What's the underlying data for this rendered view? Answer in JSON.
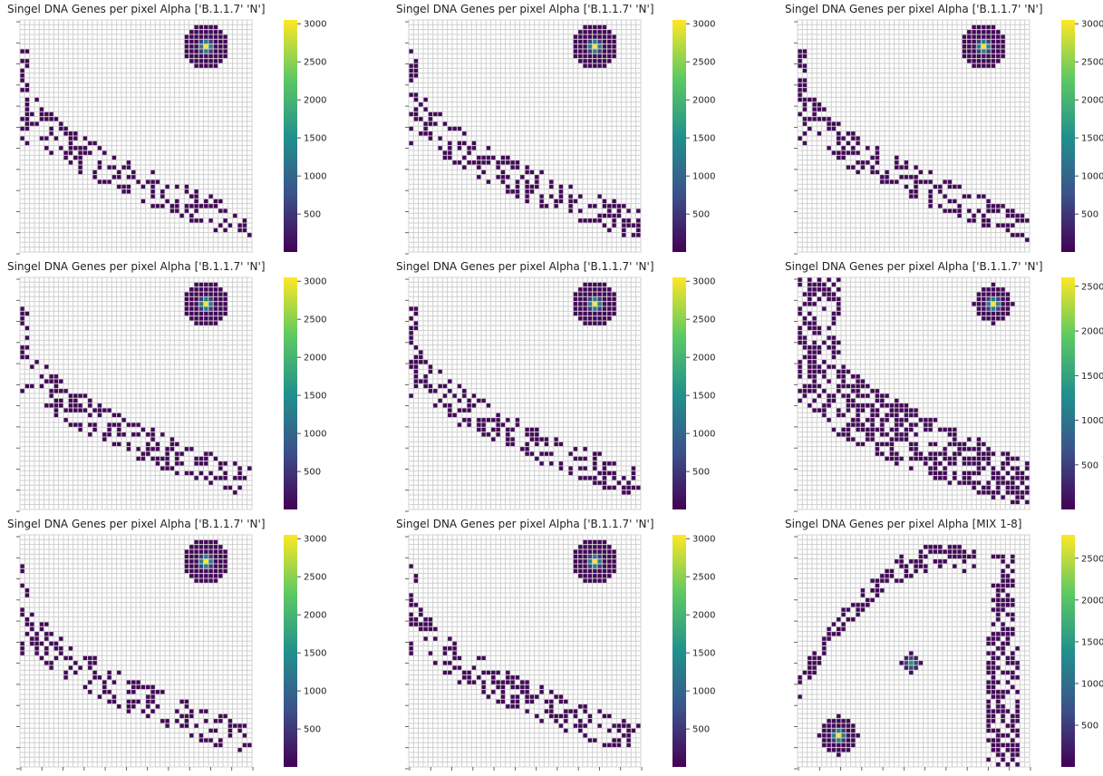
{
  "figure": {
    "background": "#ffffff",
    "grid_color": "#cfcfcf",
    "empty_cell_color": "#ffffff",
    "colormap": "viridis",
    "colormap_stops": [
      "#440154",
      "#3b528b",
      "#21918c",
      "#5ec962",
      "#fde725"
    ]
  },
  "chart_data": [
    {
      "type": "heatmap",
      "title": "Singel DNA Genes per pixel Alpha ['B.1.1.7' 'N']",
      "grid_size": [
        48,
        48
      ],
      "colorbar": {
        "min": 1,
        "max": 3050,
        "ticks": [
          500,
          1000,
          1500,
          2000,
          2500,
          3000
        ]
      },
      "hotspots": [
        {
          "center": [
            5,
            38
          ],
          "radius": 4.5,
          "peak": 3050
        }
      ],
      "shape": "arc-band",
      "seed": 11
    },
    {
      "type": "heatmap",
      "title": "Singel DNA Genes per pixel Alpha ['B.1.1.7' 'N']",
      "grid_size": [
        48,
        48
      ],
      "colorbar": {
        "min": 1,
        "max": 3050,
        "ticks": [
          500,
          1000,
          1500,
          2000,
          2500,
          3000
        ]
      },
      "hotspots": [
        {
          "center": [
            5,
            38
          ],
          "radius": 4.5,
          "peak": 3050
        }
      ],
      "shape": "arc-band",
      "seed": 23
    },
    {
      "type": "heatmap",
      "title": "Singel DNA Genes per pixel Alpha ['B.1.1.7' 'N']",
      "grid_size": [
        48,
        48
      ],
      "colorbar": {
        "min": 1,
        "max": 3050,
        "ticks": [
          500,
          1000,
          1500,
          2000,
          2500,
          3000
        ]
      },
      "hotspots": [
        {
          "center": [
            5,
            38
          ],
          "radius": 4.5,
          "peak": 3050
        }
      ],
      "shape": "arc-band",
      "seed": 37
    },
    {
      "type": "heatmap",
      "title": "Singel DNA Genes per pixel Alpha ['B.1.1.7' 'N']",
      "grid_size": [
        48,
        48
      ],
      "colorbar": {
        "min": 1,
        "max": 3050,
        "ticks": [
          500,
          1000,
          1500,
          2000,
          2500,
          3000
        ]
      },
      "hotspots": [
        {
          "center": [
            5,
            38
          ],
          "radius": 4.5,
          "peak": 3050
        }
      ],
      "shape": "arc-band",
      "seed": 41
    },
    {
      "type": "heatmap",
      "title": "Singel DNA Genes per pixel Alpha ['B.1.1.7' 'N']",
      "grid_size": [
        48,
        48
      ],
      "colorbar": {
        "min": 1,
        "max": 3050,
        "ticks": [
          500,
          1000,
          1500,
          2000,
          2500,
          3000
        ]
      },
      "hotspots": [
        {
          "center": [
            5,
            38
          ],
          "radius": 4.5,
          "peak": 3050
        }
      ],
      "shape": "arc-band",
      "seed": 53
    },
    {
      "type": "heatmap",
      "title": "Singel DNA Genes per pixel Alpha ['B.1.1.7' 'N']",
      "grid_size": [
        48,
        48
      ],
      "colorbar": {
        "min": 1,
        "max": 2600,
        "ticks": [
          500,
          1000,
          1500,
          2000,
          2500
        ]
      },
      "hotspots": [
        {
          "center": [
            5,
            40
          ],
          "radius": 4.0,
          "peak": 2600
        }
      ],
      "shape": "arc-band-wide",
      "seed": 67
    },
    {
      "type": "heatmap",
      "title": "Singel DNA Genes per pixel Alpha ['B.1.1.7' 'N']",
      "grid_size": [
        48,
        48
      ],
      "colorbar": {
        "min": 1,
        "max": 3050,
        "ticks": [
          500,
          1000,
          1500,
          2000,
          2500,
          3000
        ]
      },
      "hotspots": [
        {
          "center": [
            5,
            38
          ],
          "radius": 4.5,
          "peak": 3050
        }
      ],
      "shape": "arc-band",
      "seed": 71
    },
    {
      "type": "heatmap",
      "title": "Singel DNA Genes per pixel Alpha ['B.1.1.7' 'N']",
      "grid_size": [
        48,
        48
      ],
      "colorbar": {
        "min": 1,
        "max": 3050,
        "ticks": [
          500,
          1000,
          1500,
          2000,
          2500,
          3000
        ]
      },
      "hotspots": [
        {
          "center": [
            5,
            38
          ],
          "radius": 4.5,
          "peak": 3050
        }
      ],
      "shape": "arc-band",
      "seed": 83
    },
    {
      "type": "heatmap",
      "title": "Singel DNA Genes per pixel Alpha [MIX 1-8]",
      "grid_size": [
        48,
        48
      ],
      "colorbar": {
        "min": 1,
        "max": 2780,
        "ticks": [
          500,
          1000,
          1500,
          2000,
          2500
        ]
      },
      "hotspots": [
        {
          "center": [
            26,
            23
          ],
          "radius": 2.2,
          "peak": 1400
        },
        {
          "center": [
            41,
            8
          ],
          "radius": 4.0,
          "peak": 2780
        }
      ],
      "shape": "hook",
      "seed": 97
    }
  ]
}
